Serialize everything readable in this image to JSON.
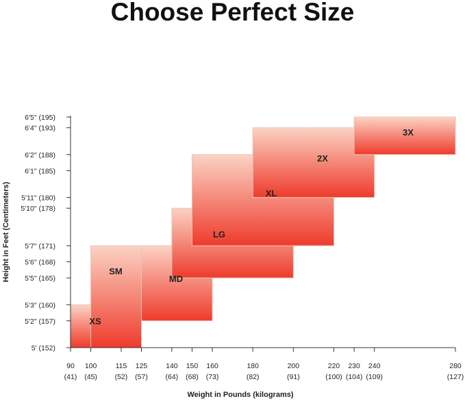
{
  "title": "Choose Perfect Size",
  "colors": {
    "box_top": "#fbd3c4",
    "box_bottom": "#ee3b2c",
    "box_stroke": "#e8c4b8",
    "axis": "#333333"
  },
  "chart_data": {
    "type": "range-boxes",
    "title": "Choose Perfect Size",
    "xlabel": "Weight in Pounds (kilograms)",
    "ylabel": "Height in Feet (Centimeters)",
    "x_ticks": [
      {
        "value": 90,
        "label": "90",
        "sublabel": "(41)"
      },
      {
        "value": 100,
        "label": "100",
        "sublabel": "(45)"
      },
      {
        "value": 115,
        "label": "115",
        "sublabel": "(52)"
      },
      {
        "value": 125,
        "label": "125",
        "sublabel": "(57)"
      },
      {
        "value": 140,
        "label": "140",
        "sublabel": "(64)"
      },
      {
        "value": 150,
        "label": "150",
        "sublabel": "(68)"
      },
      {
        "value": 160,
        "label": "160",
        "sublabel": "(73)"
      },
      {
        "value": 180,
        "label": "180",
        "sublabel": "(82)"
      },
      {
        "value": 200,
        "label": "200",
        "sublabel": "(91)"
      },
      {
        "value": 220,
        "label": "220",
        "sublabel": "(100)"
      },
      {
        "value": 230,
        "label": "230",
        "sublabel": "(104)"
      },
      {
        "value": 240,
        "label": "240",
        "sublabel": "(109)"
      },
      {
        "value": 280,
        "label": "280",
        "sublabel": "(127)"
      }
    ],
    "y_ticks": [
      {
        "value": 152,
        "label": "5' (152)"
      },
      {
        "value": 157,
        "label": "5'2\" (157)"
      },
      {
        "value": 160,
        "label": "5'3\" (160)"
      },
      {
        "value": 165,
        "label": "5'5\" (165)"
      },
      {
        "value": 168,
        "label": "5'6\" (168)"
      },
      {
        "value": 171,
        "label": "5'7\" (171)"
      },
      {
        "value": 178,
        "label": "5'10\" (178)"
      },
      {
        "value": 180,
        "label": "5'11\" (180)"
      },
      {
        "value": 185,
        "label": "6'1\" (185)"
      },
      {
        "value": 188,
        "label": "6'2\" (188)"
      },
      {
        "value": 193,
        "label": "6'4\" (193)"
      },
      {
        "value": 195,
        "label": "6'5\" (195)"
      }
    ],
    "sizes": [
      {
        "name": "XS",
        "weight": [
          90,
          115
        ],
        "height": [
          152,
          160
        ]
      },
      {
        "name": "SM",
        "weight": [
          100,
          125
        ],
        "height": [
          152,
          171
        ]
      },
      {
        "name": "MD",
        "weight": [
          125,
          160
        ],
        "height": [
          157,
          171
        ]
      },
      {
        "name": "LG",
        "weight": [
          140,
          200
        ],
        "height": [
          165,
          178
        ]
      },
      {
        "name": "XL",
        "weight": [
          150,
          220
        ],
        "height": [
          171,
          188
        ]
      },
      {
        "name": "2X",
        "weight": [
          180,
          240
        ],
        "height": [
          180,
          193
        ]
      },
      {
        "name": "3X",
        "weight": [
          230,
          280
        ],
        "height": [
          188,
          195
        ]
      }
    ]
  }
}
